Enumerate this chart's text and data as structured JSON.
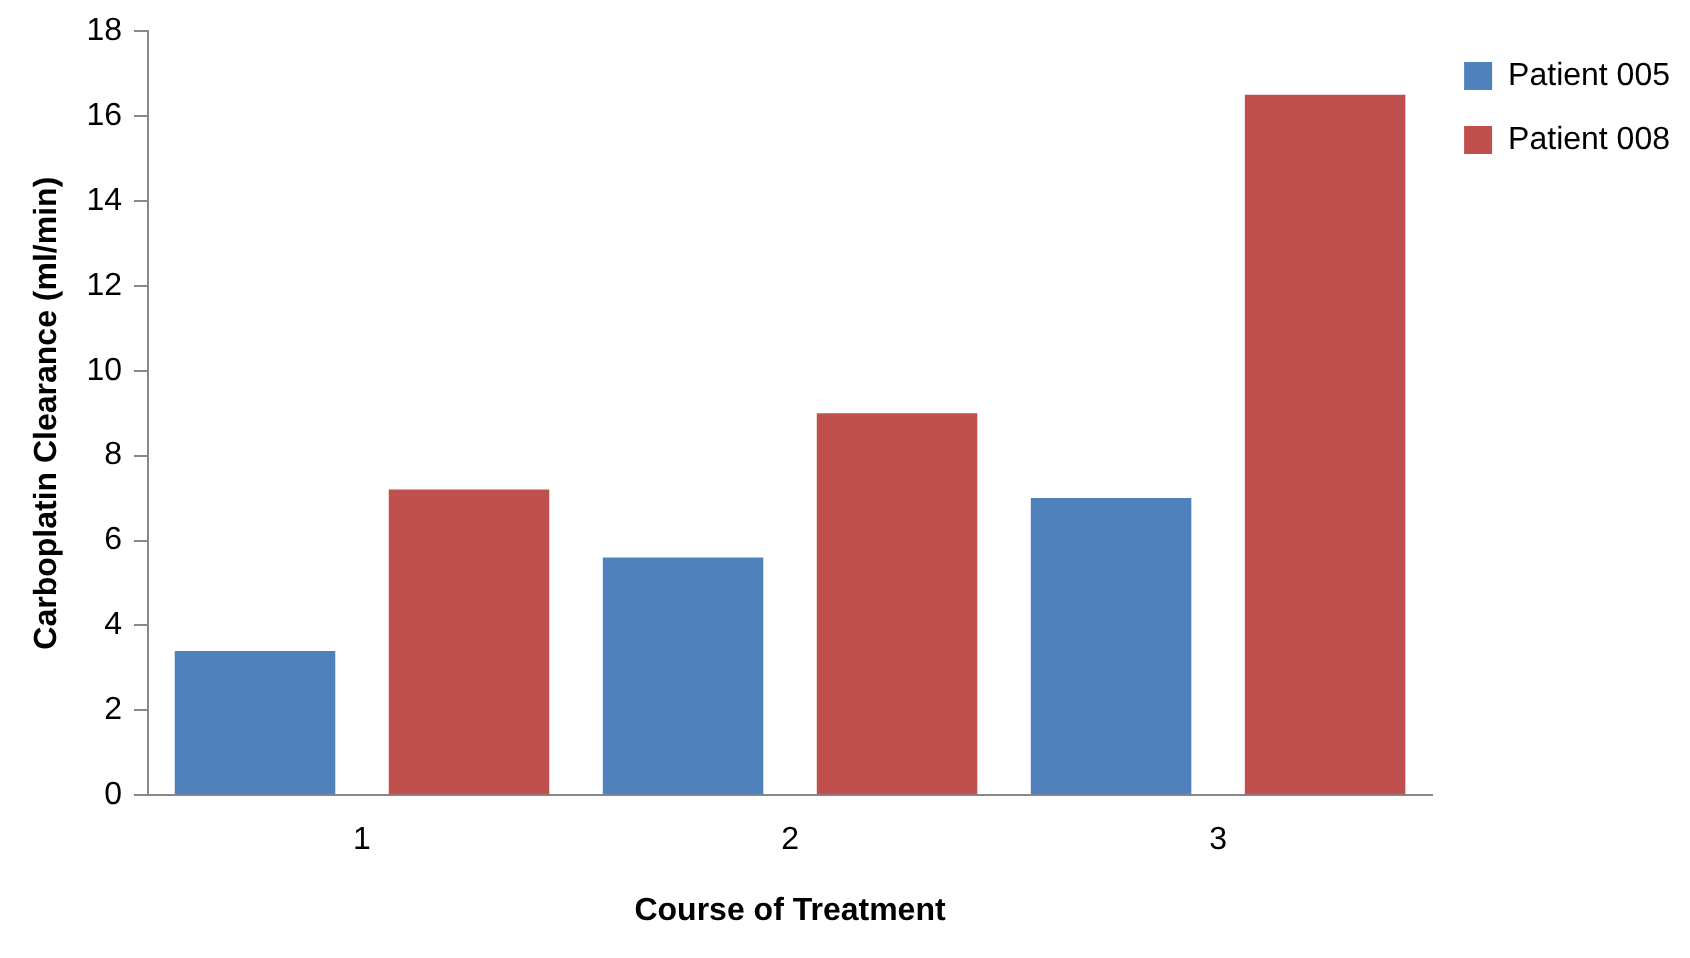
{
  "chart_data": {
    "type": "bar",
    "xlabel": "Course of Treatment",
    "ylabel": "Carboplatin Clearance (ml/min)",
    "categories": [
      "1",
      "2",
      "3"
    ],
    "series": [
      {
        "name": "Patient 005",
        "color": "#4f81bd",
        "values": [
          3.4,
          5.6,
          7.0
        ]
      },
      {
        "name": "Patient 008",
        "color": "#c0504d",
        "values": [
          7.2,
          9.0,
          16.5
        ]
      }
    ],
    "ylim": [
      0,
      18
    ],
    "yticks": [
      0,
      2,
      4,
      6,
      8,
      10,
      12,
      14,
      16,
      18
    ],
    "grid": false,
    "legend": "right"
  }
}
